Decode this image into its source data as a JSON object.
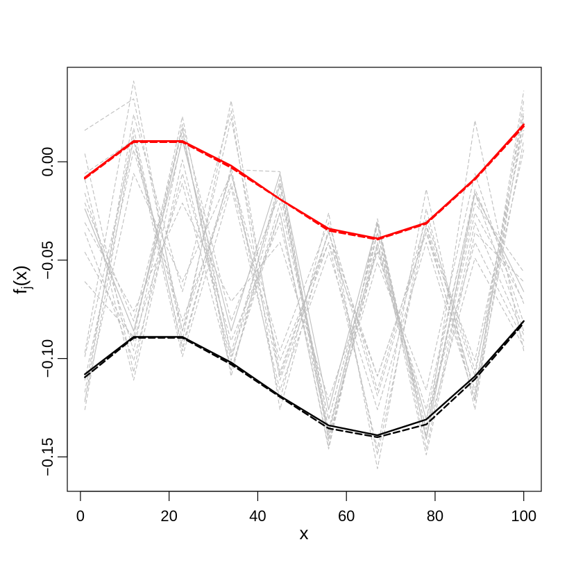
{
  "chart_data": {
    "type": "line",
    "title": "",
    "xlabel": "x",
    "ylabel_main": "f",
    "ylabel_sub": "j",
    "ylabel_tail": "(x)",
    "xlim": [
      -2.96,
      103.96
    ],
    "ylim": [
      -0.1675,
      0.048
    ],
    "x_ticks": [
      0,
      20,
      40,
      60,
      80,
      100
    ],
    "x_tick_labels": [
      "0",
      "20",
      "40",
      "60",
      "80",
      "100"
    ],
    "y_ticks": [
      -0.15,
      -0.1,
      -0.05,
      0.0
    ],
    "y_tick_labels": [
      "−0.15",
      "−0.10",
      "−0.05",
      "0.00"
    ],
    "grid": false,
    "colors": {
      "upper": "#ff0000",
      "lower": "#000000",
      "samples": "#bebebe"
    },
    "x": [
      1,
      12,
      23,
      34,
      45,
      56,
      67,
      78,
      89,
      100
    ],
    "series": [
      {
        "values": [
          -0.008,
          0.0105,
          0.0105,
          -0.002,
          -0.019,
          -0.034,
          -0.039,
          -0.031,
          -0.0085,
          0.019
        ],
        "color": "#ff0000",
        "style": "solid",
        "width": 2.6
      },
      {
        "values": [
          -0.0085,
          0.01,
          0.01,
          -0.003,
          -0.019,
          -0.035,
          -0.0395,
          -0.0315,
          -0.009,
          0.018
        ],
        "color": "#ff0000",
        "style": "dashed",
        "width": 2.6
      },
      {
        "values": [
          -0.108,
          -0.089,
          -0.089,
          -0.102,
          -0.119,
          -0.134,
          -0.139,
          -0.131,
          -0.109,
          -0.081
        ],
        "color": "#000000",
        "style": "solid",
        "width": 2.4
      },
      {
        "values": [
          -0.1095,
          -0.0895,
          -0.0895,
          -0.103,
          -0.1195,
          -0.1355,
          -0.14,
          -0.1335,
          -0.1105,
          -0.082
        ],
        "color": "#000000",
        "style": "dashed",
        "width": 2.4
      },
      {
        "values": [
          0.016,
          0.032,
          -0.086,
          0.022,
          -0.107,
          -0.036,
          -0.119,
          -0.033,
          -0.122,
          0.031
        ],
        "color": "#bebebe",
        "style": "dashed",
        "width": 1.1
      },
      {
        "values": [
          -0.097,
          0.041,
          -0.091,
          0.031,
          -0.111,
          -0.041,
          -0.146,
          -0.014,
          -0.126,
          0.024
        ],
        "color": "#bebebe",
        "style": "dashed",
        "width": 1.1
      },
      {
        "values": [
          0.004,
          -0.107,
          0.013,
          -0.097,
          -0.012,
          -0.142,
          -0.042,
          -0.139,
          -0.049,
          -0.094
        ],
        "color": "#bebebe",
        "style": "dashed",
        "width": 1.1
      },
      {
        "values": [
          -0.122,
          0.024,
          -0.066,
          0.026,
          -0.126,
          -0.034,
          -0.149,
          -0.032,
          -0.109,
          0.026
        ],
        "color": "#bebebe",
        "style": "dashed",
        "width": 1.1
      },
      {
        "values": [
          -0.126,
          0.013,
          -0.094,
          -0.004,
          -0.005,
          -0.141,
          -0.044,
          -0.131,
          -0.014,
          -0.072
        ],
        "color": "#bebebe",
        "style": "dashed",
        "width": 1.1
      },
      {
        "values": [
          -0.061,
          -0.089,
          0.023,
          -0.099,
          -0.026,
          -0.145,
          -0.029,
          -0.141,
          0.021,
          -0.096
        ],
        "color": "#bebebe",
        "style": "dashed",
        "width": 1.1
      },
      {
        "values": [
          -0.117,
          0.017,
          -0.096,
          -0.003,
          -0.121,
          -0.026,
          -0.156,
          -0.024,
          -0.119,
          0.036
        ],
        "color": "#bebebe",
        "style": "dashed",
        "width": 1.1
      },
      {
        "values": [
          -0.021,
          -0.081,
          0.017,
          -0.109,
          -0.011,
          -0.139,
          -0.032,
          -0.146,
          -0.031,
          -0.088
        ],
        "color": "#bebebe",
        "style": "dashed",
        "width": 1.1
      },
      {
        "values": [
          -0.036,
          -0.101,
          -0.006,
          -0.091,
          -0.031,
          -0.137,
          -0.051,
          -0.116,
          -0.006,
          -0.082
        ],
        "color": "#bebebe",
        "style": "dashed",
        "width": 1.1
      },
      {
        "values": [
          -0.099,
          0.011,
          -0.099,
          -0.013,
          -0.116,
          -0.046,
          -0.126,
          -0.041,
          -0.121,
          0.011
        ],
        "color": "#bebebe",
        "style": "dashed",
        "width": 1.1
      },
      {
        "values": [
          -0.016,
          -0.096,
          0.019,
          -0.081,
          -0.016,
          -0.131,
          -0.036,
          -0.149,
          -0.036,
          -0.061
        ],
        "color": "#bebebe",
        "style": "dashed",
        "width": 1.1
      },
      {
        "values": [
          -0.111,
          0.006,
          -0.081,
          -0.011,
          -0.101,
          -0.041,
          -0.109,
          -0.036,
          -0.101,
          0.016
        ],
        "color": "#bebebe",
        "style": "dashed",
        "width": 1.1
      },
      {
        "values": [
          -0.031,
          -0.076,
          -0.021,
          -0.071,
          -0.041,
          -0.121,
          -0.046,
          -0.126,
          -0.016,
          -0.086
        ],
        "color": "#bebebe",
        "style": "dashed",
        "width": 1.1
      },
      {
        "values": [
          -0.121,
          -0.006,
          -0.061,
          -0.006,
          -0.096,
          -0.031,
          -0.116,
          -0.029,
          -0.106,
          0.006
        ],
        "color": "#bebebe",
        "style": "dashed",
        "width": 1.1
      },
      {
        "values": [
          -0.046,
          -0.091,
          -0.011,
          -0.106,
          -0.021,
          -0.131,
          -0.036,
          -0.136,
          -0.026,
          -0.071
        ],
        "color": "#bebebe",
        "style": "dashed",
        "width": 1.1
      },
      {
        "values": [
          -0.009,
          -0.111,
          0.001,
          -0.101,
          -0.009,
          -0.136,
          -0.041,
          -0.131,
          -0.041,
          -0.091
        ],
        "color": "#bebebe",
        "style": "dashed",
        "width": 1.1
      },
      {
        "values": [
          -0.006,
          0.011,
          -0.086,
          -0.006,
          -0.109,
          -0.036,
          -0.109,
          -0.036,
          -0.116,
          0.021
        ],
        "color": "#bebebe",
        "style": "dashed",
        "width": 1.1
      },
      {
        "values": [
          -0.024,
          -0.086,
          0.016,
          -0.106,
          -0.026,
          -0.146,
          -0.036,
          -0.136,
          -0.021,
          -0.056
        ],
        "color": "#bebebe",
        "style": "dashed",
        "width": 1.1
      },
      {
        "values": [
          -0.024,
          -0.086,
          0.011,
          -0.086,
          -0.006,
          -0.126,
          -0.031,
          -0.141,
          -0.016,
          -0.066
        ],
        "color": "#bebebe",
        "style": "solid",
        "width": 1.1
      }
    ]
  }
}
